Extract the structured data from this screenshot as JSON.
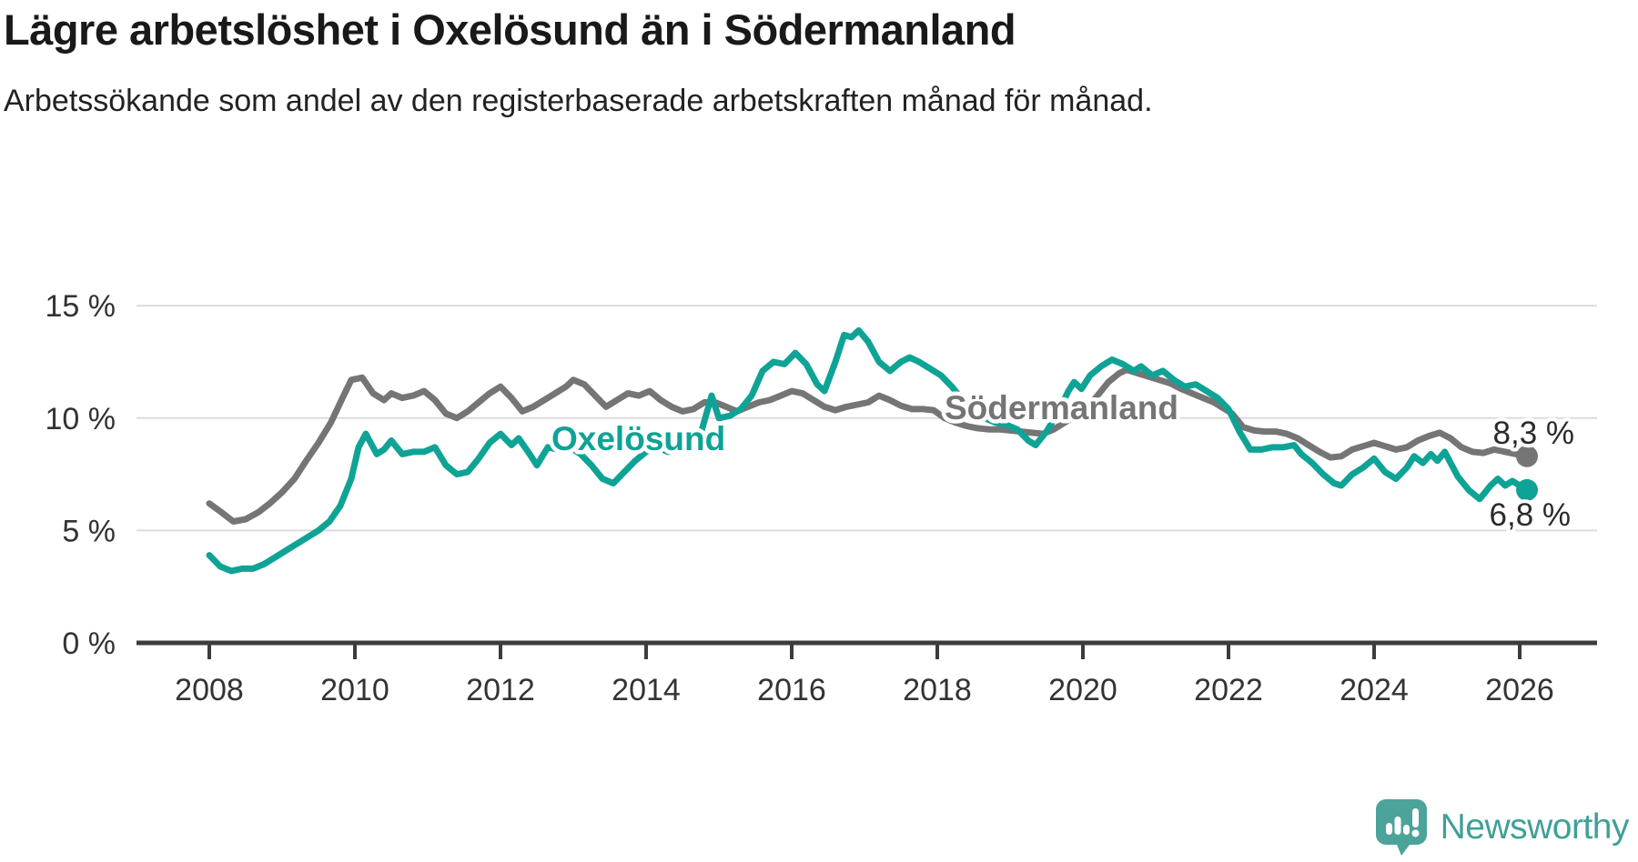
{
  "title": "Lägre arbetslöshet i Oxelösund än i Södermanland",
  "subtitle": "Arbetssökande som andel av den registerbaserade arbetskraften månad för månad.",
  "branding": {
    "logo_text": "Newsworthy",
    "icon": "newsworthy-bubble-chart-icon",
    "text_color": "#3fa096",
    "icon_color": "#4ba39a"
  },
  "colors": {
    "grid": "#dcdcdc",
    "axis": "#3c3c3c",
    "tick_label": "#333333",
    "value_label": "#2a2a2a"
  },
  "chart_data": {
    "type": "line",
    "title": "Lägre arbetslöshet i Oxelösund än i Södermanland",
    "xlabel": "",
    "ylabel": "",
    "grid": "horizontal",
    "x_axis": {
      "range": [
        2007.05,
        2027.05
      ],
      "ticks": [
        2008,
        2010,
        2012,
        2014,
        2016,
        2018,
        2020,
        2022,
        2024,
        2026
      ]
    },
    "y_axis": {
      "range": [
        0,
        17.3
      ],
      "ticks": [
        0,
        5,
        10,
        15
      ],
      "gridlines": [
        5,
        10,
        15
      ],
      "suffix": " %"
    },
    "series": [
      {
        "name": "Södermanland",
        "color": "#757575",
        "end_label": "8,3 %",
        "end_value": 8.3,
        "points": [
          [
            2008.0,
            6.2
          ],
          [
            2008.17,
            5.8
          ],
          [
            2008.33,
            5.4
          ],
          [
            2008.5,
            5.5
          ],
          [
            2008.67,
            5.8
          ],
          [
            2008.83,
            6.2
          ],
          [
            2009.0,
            6.7
          ],
          [
            2009.17,
            7.3
          ],
          [
            2009.33,
            8.1
          ],
          [
            2009.5,
            8.9
          ],
          [
            2009.67,
            9.8
          ],
          [
            2009.83,
            10.9
          ],
          [
            2009.95,
            11.7
          ],
          [
            2010.1,
            11.8
          ],
          [
            2010.25,
            11.1
          ],
          [
            2010.4,
            10.8
          ],
          [
            2010.5,
            11.1
          ],
          [
            2010.65,
            10.9
          ],
          [
            2010.8,
            11.0
          ],
          [
            2010.95,
            11.2
          ],
          [
            2011.1,
            10.8
          ],
          [
            2011.25,
            10.2
          ],
          [
            2011.4,
            10.0
          ],
          [
            2011.55,
            10.3
          ],
          [
            2011.7,
            10.7
          ],
          [
            2011.85,
            11.1
          ],
          [
            2012.0,
            11.4
          ],
          [
            2012.15,
            10.9
          ],
          [
            2012.3,
            10.3
          ],
          [
            2012.45,
            10.5
          ],
          [
            2012.6,
            10.8
          ],
          [
            2012.75,
            11.1
          ],
          [
            2012.9,
            11.4
          ],
          [
            2013.0,
            11.7
          ],
          [
            2013.15,
            11.5
          ],
          [
            2013.3,
            11.0
          ],
          [
            2013.45,
            10.5
          ],
          [
            2013.6,
            10.8
          ],
          [
            2013.75,
            11.1
          ],
          [
            2013.9,
            11.0
          ],
          [
            2014.05,
            11.2
          ],
          [
            2014.2,
            10.8
          ],
          [
            2014.35,
            10.5
          ],
          [
            2014.5,
            10.3
          ],
          [
            2014.65,
            10.4
          ],
          [
            2014.8,
            10.7
          ],
          [
            2014.95,
            10.7
          ],
          [
            2015.1,
            10.5
          ],
          [
            2015.25,
            10.3
          ],
          [
            2015.4,
            10.5
          ],
          [
            2015.55,
            10.7
          ],
          [
            2015.7,
            10.8
          ],
          [
            2015.85,
            11.0
          ],
          [
            2016.0,
            11.2
          ],
          [
            2016.15,
            11.1
          ],
          [
            2016.3,
            10.8
          ],
          [
            2016.45,
            10.5
          ],
          [
            2016.6,
            10.35
          ],
          [
            2016.75,
            10.5
          ],
          [
            2016.9,
            10.6
          ],
          [
            2017.05,
            10.7
          ],
          [
            2017.2,
            11.0
          ],
          [
            2017.35,
            10.8
          ],
          [
            2017.5,
            10.55
          ],
          [
            2017.65,
            10.4
          ],
          [
            2017.8,
            10.4
          ],
          [
            2017.95,
            10.35
          ],
          [
            2018.1,
            10.0
          ],
          [
            2018.25,
            9.8
          ],
          [
            2018.4,
            9.65
          ],
          [
            2018.55,
            9.55
          ],
          [
            2018.7,
            9.5
          ],
          [
            2018.85,
            9.5
          ],
          [
            2019.0,
            9.45
          ],
          [
            2019.15,
            9.4
          ],
          [
            2019.3,
            9.35
          ],
          [
            2019.45,
            9.3
          ],
          [
            2019.6,
            9.5
          ],
          [
            2019.75,
            9.8
          ],
          [
            2019.9,
            10.1
          ],
          [
            2020.05,
            10.4
          ],
          [
            2020.2,
            11.0
          ],
          [
            2020.35,
            11.6
          ],
          [
            2020.5,
            12.0
          ],
          [
            2020.6,
            12.15
          ],
          [
            2020.75,
            12.0
          ],
          [
            2020.9,
            11.85
          ],
          [
            2021.05,
            11.7
          ],
          [
            2021.2,
            11.55
          ],
          [
            2021.35,
            11.3
          ],
          [
            2021.5,
            11.1
          ],
          [
            2021.65,
            10.9
          ],
          [
            2021.8,
            10.7
          ],
          [
            2021.95,
            10.4
          ],
          [
            2022.05,
            10.2
          ],
          [
            2022.2,
            9.6
          ],
          [
            2022.35,
            9.45
          ],
          [
            2022.5,
            9.4
          ],
          [
            2022.65,
            9.4
          ],
          [
            2022.8,
            9.3
          ],
          [
            2022.95,
            9.1
          ],
          [
            2023.1,
            8.8
          ],
          [
            2023.25,
            8.5
          ],
          [
            2023.4,
            8.25
          ],
          [
            2023.55,
            8.3
          ],
          [
            2023.7,
            8.6
          ],
          [
            2023.85,
            8.75
          ],
          [
            2024.0,
            8.9
          ],
          [
            2024.15,
            8.75
          ],
          [
            2024.3,
            8.6
          ],
          [
            2024.45,
            8.7
          ],
          [
            2024.6,
            9.0
          ],
          [
            2024.75,
            9.2
          ],
          [
            2024.9,
            9.35
          ],
          [
            2025.05,
            9.1
          ],
          [
            2025.2,
            8.7
          ],
          [
            2025.35,
            8.5
          ],
          [
            2025.5,
            8.45
          ],
          [
            2025.65,
            8.6
          ],
          [
            2025.8,
            8.5
          ],
          [
            2025.95,
            8.4
          ],
          [
            2026.1,
            8.3
          ]
        ]
      },
      {
        "name": "Oxelösund",
        "color": "#0fa396",
        "end_label": "6,8 %",
        "end_value": 6.8,
        "points": [
          [
            2008.0,
            3.9
          ],
          [
            2008.15,
            3.4
          ],
          [
            2008.3,
            3.2
          ],
          [
            2008.45,
            3.3
          ],
          [
            2008.6,
            3.3
          ],
          [
            2008.75,
            3.5
          ],
          [
            2008.9,
            3.8
          ],
          [
            2009.05,
            4.1
          ],
          [
            2009.2,
            4.4
          ],
          [
            2009.35,
            4.7
          ],
          [
            2009.5,
            5.0
          ],
          [
            2009.65,
            5.4
          ],
          [
            2009.8,
            6.1
          ],
          [
            2009.95,
            7.3
          ],
          [
            2010.05,
            8.7
          ],
          [
            2010.15,
            9.3
          ],
          [
            2010.3,
            8.4
          ],
          [
            2010.4,
            8.6
          ],
          [
            2010.5,
            9.0
          ],
          [
            2010.65,
            8.4
          ],
          [
            2010.8,
            8.5
          ],
          [
            2010.95,
            8.5
          ],
          [
            2011.1,
            8.7
          ],
          [
            2011.25,
            7.9
          ],
          [
            2011.4,
            7.5
          ],
          [
            2011.55,
            7.6
          ],
          [
            2011.7,
            8.2
          ],
          [
            2011.85,
            8.9
          ],
          [
            2012.0,
            9.3
          ],
          [
            2012.15,
            8.8
          ],
          [
            2012.25,
            9.1
          ],
          [
            2012.4,
            8.4
          ],
          [
            2012.5,
            7.9
          ],
          [
            2012.65,
            8.7
          ],
          [
            2012.8,
            8.6
          ],
          [
            2012.95,
            8.7
          ],
          [
            2013.1,
            8.4
          ],
          [
            2013.25,
            7.9
          ],
          [
            2013.4,
            7.3
          ],
          [
            2013.55,
            7.1
          ],
          [
            2013.7,
            7.6
          ],
          [
            2013.85,
            8.1
          ],
          [
            2014.0,
            8.5
          ],
          [
            2014.15,
            8.7
          ],
          [
            2014.3,
            8.5
          ],
          [
            2014.45,
            8.6
          ],
          [
            2014.6,
            8.9
          ],
          [
            2014.75,
            9.3
          ],
          [
            2014.9,
            11.0
          ],
          [
            2015.0,
            10.0
          ],
          [
            2015.15,
            10.1
          ],
          [
            2015.3,
            10.4
          ],
          [
            2015.45,
            11.0
          ],
          [
            2015.6,
            12.1
          ],
          [
            2015.75,
            12.5
          ],
          [
            2015.9,
            12.4
          ],
          [
            2016.05,
            12.9
          ],
          [
            2016.2,
            12.4
          ],
          [
            2016.35,
            11.5
          ],
          [
            2016.45,
            11.2
          ],
          [
            2016.6,
            12.5
          ],
          [
            2016.72,
            13.7
          ],
          [
            2016.82,
            13.6
          ],
          [
            2016.92,
            13.9
          ],
          [
            2017.05,
            13.4
          ],
          [
            2017.2,
            12.5
          ],
          [
            2017.35,
            12.1
          ],
          [
            2017.5,
            12.5
          ],
          [
            2017.62,
            12.7
          ],
          [
            2017.75,
            12.5
          ],
          [
            2017.9,
            12.2
          ],
          [
            2018.05,
            11.9
          ],
          [
            2018.2,
            11.4
          ],
          [
            2018.35,
            10.8
          ],
          [
            2018.5,
            10.3
          ],
          [
            2018.65,
            10.0
          ],
          [
            2018.8,
            9.8
          ],
          [
            2018.95,
            9.7
          ],
          [
            2019.1,
            9.5
          ],
          [
            2019.25,
            9.0
          ],
          [
            2019.35,
            8.8
          ],
          [
            2019.5,
            9.4
          ],
          [
            2019.65,
            10.2
          ],
          [
            2019.8,
            11.2
          ],
          [
            2019.88,
            11.6
          ],
          [
            2019.98,
            11.3
          ],
          [
            2020.1,
            11.9
          ],
          [
            2020.25,
            12.3
          ],
          [
            2020.4,
            12.6
          ],
          [
            2020.55,
            12.4
          ],
          [
            2020.7,
            12.1
          ],
          [
            2020.8,
            12.3
          ],
          [
            2020.95,
            11.9
          ],
          [
            2021.1,
            12.1
          ],
          [
            2021.25,
            11.7
          ],
          [
            2021.4,
            11.4
          ],
          [
            2021.55,
            11.5
          ],
          [
            2021.7,
            11.2
          ],
          [
            2021.85,
            10.9
          ],
          [
            2022.0,
            10.4
          ],
          [
            2022.15,
            9.4
          ],
          [
            2022.3,
            8.6
          ],
          [
            2022.45,
            8.6
          ],
          [
            2022.6,
            8.7
          ],
          [
            2022.75,
            8.7
          ],
          [
            2022.9,
            8.8
          ],
          [
            2023.0,
            8.4
          ],
          [
            2023.15,
            8.0
          ],
          [
            2023.3,
            7.5
          ],
          [
            2023.45,
            7.1
          ],
          [
            2023.55,
            7.0
          ],
          [
            2023.7,
            7.5
          ],
          [
            2023.85,
            7.8
          ],
          [
            2024.0,
            8.2
          ],
          [
            2024.15,
            7.6
          ],
          [
            2024.3,
            7.3
          ],
          [
            2024.45,
            7.8
          ],
          [
            2024.55,
            8.3
          ],
          [
            2024.67,
            8.0
          ],
          [
            2024.78,
            8.4
          ],
          [
            2024.87,
            8.1
          ],
          [
            2024.97,
            8.5
          ],
          [
            2025.15,
            7.4
          ],
          [
            2025.3,
            6.8
          ],
          [
            2025.45,
            6.4
          ],
          [
            2025.6,
            7.0
          ],
          [
            2025.7,
            7.3
          ],
          [
            2025.8,
            7.0
          ],
          [
            2025.9,
            7.2
          ],
          [
            2026.0,
            7.0
          ],
          [
            2026.1,
            6.8
          ]
        ]
      }
    ]
  }
}
